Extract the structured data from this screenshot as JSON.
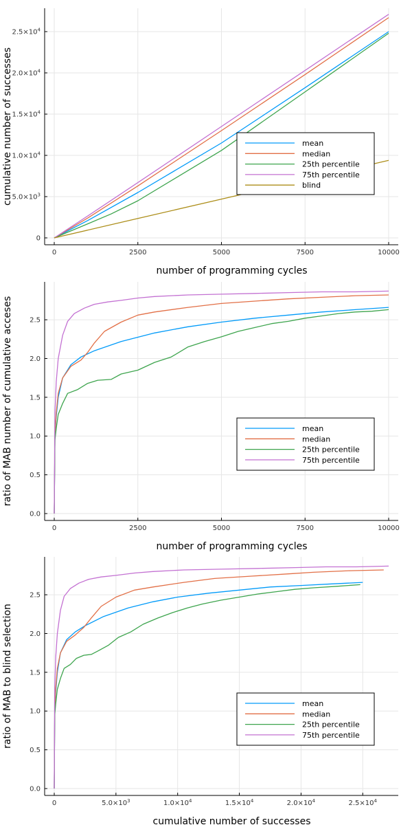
{
  "colors": {
    "mean": "#009af9",
    "median": "#e26f46",
    "p25": "#3da44d",
    "p75": "#c371d2",
    "blind": "#ac8d18"
  },
  "chart_data": [
    {
      "type": "line",
      "title": "",
      "xlabel": "number of programming cycles",
      "ylabel": "cumulative number of successes",
      "xlim": [
        0,
        10000
      ],
      "ylim": [
        0,
        27000
      ],
      "grid": true,
      "legend_position": "right",
      "x_ticks": [
        0,
        2500,
        5000,
        7500,
        10000
      ],
      "x_tick_labels": [
        "0",
        "2500",
        "5000",
        "7500",
        "10000"
      ],
      "y_ticks": [
        0,
        5000,
        10000,
        15000,
        20000,
        25000
      ],
      "y_tick_labels": [
        "0",
        "5.0×10^3",
        "1.0×10^4",
        "1.5×10^4",
        "2.0×10^4",
        "2.5×10^4"
      ],
      "series": [
        {
          "name": "mean",
          "color_key": "mean",
          "x": [
            0,
            1000,
            2500,
            5000,
            7500,
            10000
          ],
          "y": [
            0,
            2100,
            5500,
            11500,
            18200,
            25000
          ]
        },
        {
          "name": "median",
          "color_key": "median",
          "x": [
            0,
            1000,
            2500,
            5000,
            7500,
            10000
          ],
          "y": [
            0,
            2400,
            6300,
            13000,
            19800,
            26700
          ]
        },
        {
          "name": "25th percentile",
          "color_key": "p25",
          "x": [
            0,
            1000,
            1700,
            2500,
            5000,
            7500,
            10000
          ],
          "y": [
            0,
            1700,
            2900,
            4500,
            10600,
            17700,
            24800
          ]
        },
        {
          "name": "75th percentile",
          "color_key": "p75",
          "x": [
            0,
            1000,
            2500,
            5000,
            7500,
            10000
          ],
          "y": [
            0,
            2650,
            6700,
            13500,
            20300,
            27100
          ]
        },
        {
          "name": "blind",
          "color_key": "blind",
          "x": [
            0,
            2500,
            5000,
            7500,
            10000
          ],
          "y": [
            0,
            2350,
            4700,
            7050,
            9400
          ]
        }
      ]
    },
    {
      "type": "line",
      "title": "",
      "xlabel": "number of programming cycles",
      "ylabel": "ratio of MAB number of cumulative acceses",
      "xlim": [
        0,
        10000
      ],
      "ylim": [
        0,
        2.9
      ],
      "grid": true,
      "legend_position": "bottom-right",
      "x_ticks": [
        0,
        2500,
        5000,
        7500,
        10000
      ],
      "x_tick_labels": [
        "0",
        "2500",
        "5000",
        "7500",
        "10000"
      ],
      "y_ticks": [
        0,
        0.5,
        1.0,
        1.5,
        2.0,
        2.5
      ],
      "y_tick_labels": [
        "0.0",
        "0.5",
        "1.0",
        "1.5",
        "2.0",
        "2.5"
      ],
      "series": [
        {
          "name": "mean",
          "color_key": "mean",
          "x": [
            1,
            20,
            60,
            120,
            250,
            500,
            800,
            1200,
            2000,
            3000,
            4000,
            5000,
            6000,
            7000,
            8000,
            9000,
            10000
          ],
          "y": [
            0,
            1.0,
            1.25,
            1.5,
            1.75,
            1.92,
            2.02,
            2.1,
            2.22,
            2.33,
            2.41,
            2.47,
            2.52,
            2.56,
            2.6,
            2.63,
            2.66
          ]
        },
        {
          "name": "median",
          "color_key": "median",
          "x": [
            1,
            20,
            60,
            120,
            250,
            500,
            800,
            1000,
            1200,
            1500,
            2000,
            2500,
            3000,
            4000,
            5000,
            6000,
            7000,
            8000,
            9000,
            10000
          ],
          "y": [
            0,
            1.0,
            1.3,
            1.55,
            1.75,
            1.9,
            1.98,
            2.08,
            2.2,
            2.35,
            2.47,
            2.56,
            2.6,
            2.66,
            2.71,
            2.74,
            2.77,
            2.79,
            2.81,
            2.82
          ]
        },
        {
          "name": "25th percentile",
          "color_key": "p25",
          "x": [
            1,
            20,
            60,
            120,
            250,
            400,
            700,
            1000,
            1300,
            1700,
            2000,
            2500,
            3000,
            3500,
            4000,
            4500,
            5000,
            5500,
            6000,
            6500,
            7000,
            7500,
            8000,
            8500,
            9000,
            9500,
            10000
          ],
          "y": [
            0,
            0.95,
            1.1,
            1.28,
            1.42,
            1.55,
            1.6,
            1.68,
            1.72,
            1.73,
            1.8,
            1.85,
            1.95,
            2.02,
            2.15,
            2.22,
            2.28,
            2.35,
            2.4,
            2.45,
            2.48,
            2.52,
            2.55,
            2.58,
            2.6,
            2.61,
            2.63
          ]
        },
        {
          "name": "75th percentile",
          "color_key": "p75",
          "x": [
            1,
            20,
            60,
            120,
            250,
            400,
            600,
            900,
            1200,
            1600,
            2000,
            2500,
            3000,
            4000,
            5000,
            6000,
            7000,
            8000,
            9000,
            10000
          ],
          "y": [
            0,
            1.3,
            1.7,
            2.0,
            2.3,
            2.48,
            2.58,
            2.65,
            2.7,
            2.73,
            2.75,
            2.78,
            2.8,
            2.82,
            2.83,
            2.84,
            2.85,
            2.86,
            2.86,
            2.87
          ]
        }
      ]
    },
    {
      "type": "line",
      "title": "",
      "xlabel": "cumulative number of successes",
      "ylabel": "ratio of MAB to blind selection",
      "xlim": [
        0,
        27100
      ],
      "ylim": [
        0,
        2.9
      ],
      "grid": true,
      "legend_position": "bottom-right",
      "x_ticks": [
        0,
        5000,
        10000,
        15000,
        20000,
        25000
      ],
      "x_tick_labels": [
        "0",
        "5.0×10^3",
        "1.0×10^4",
        "1.5×10^4",
        "2.0×10^4",
        "2.5×10^4"
      ],
      "y_ticks": [
        0,
        0.5,
        1.0,
        1.5,
        2.0,
        2.5
      ],
      "y_tick_labels": [
        "0.0",
        "0.5",
        "1.0",
        "1.5",
        "2.0",
        "2.5"
      ],
      "series": [
        {
          "name": "mean",
          "color_key": "mean",
          "x": [
            2,
            40,
            120,
            250,
            500,
            1000,
            1700,
            2500,
            4000,
            6000,
            8000,
            10000,
            12500,
            15000,
            17500,
            20000,
            22500,
            25000
          ],
          "y": [
            0,
            1.0,
            1.25,
            1.5,
            1.75,
            1.92,
            2.02,
            2.1,
            2.22,
            2.33,
            2.41,
            2.47,
            2.52,
            2.56,
            2.6,
            2.62,
            2.64,
            2.66
          ]
        },
        {
          "name": "median",
          "color_key": "median",
          "x": [
            2,
            40,
            120,
            250,
            500,
            1000,
            1700,
            2400,
            3000,
            3800,
            5000,
            6500,
            8000,
            10500,
            13000,
            16000,
            19000,
            21000,
            24000,
            26700
          ],
          "y": [
            0,
            1.0,
            1.3,
            1.55,
            1.75,
            1.9,
            1.98,
            2.08,
            2.2,
            2.35,
            2.47,
            2.56,
            2.6,
            2.66,
            2.71,
            2.74,
            2.77,
            2.79,
            2.81,
            2.82
          ]
        },
        {
          "name": "25th percentile",
          "color_key": "p25",
          "x": [
            2,
            40,
            120,
            250,
            500,
            800,
            1300,
            1800,
            2400,
            3000,
            3600,
            4400,
            5200,
            6200,
            7200,
            8400,
            9600,
            10800,
            12000,
            13500,
            15000,
            16500,
            18000,
            19500,
            21000,
            23000,
            24800
          ],
          "y": [
            0,
            0.95,
            1.1,
            1.28,
            1.42,
            1.55,
            1.6,
            1.68,
            1.72,
            1.73,
            1.78,
            1.85,
            1.95,
            2.02,
            2.12,
            2.2,
            2.27,
            2.33,
            2.38,
            2.43,
            2.47,
            2.51,
            2.54,
            2.57,
            2.59,
            2.61,
            2.63
          ]
        },
        {
          "name": "75th percentile",
          "color_key": "p75",
          "x": [
            2,
            40,
            120,
            250,
            500,
            800,
            1300,
            2000,
            2800,
            3800,
            5000,
            6500,
            8000,
            10500,
            13500,
            16500,
            19500,
            22000,
            24500,
            27100
          ],
          "y": [
            0,
            1.3,
            1.7,
            2.0,
            2.3,
            2.48,
            2.58,
            2.65,
            2.7,
            2.73,
            2.75,
            2.78,
            2.8,
            2.82,
            2.83,
            2.84,
            2.85,
            2.86,
            2.86,
            2.87
          ]
        }
      ]
    }
  ]
}
